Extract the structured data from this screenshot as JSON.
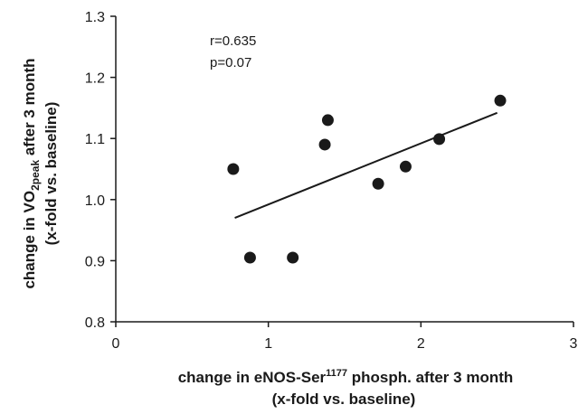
{
  "chart_data": {
    "type": "scatter",
    "title": "",
    "xlabel_line1_prefix": "change in eNOS-Ser",
    "xlabel_line1_sup": "1177",
    "xlabel_line1_suffix": " phosph. after 3 month",
    "xlabel_line2": "(x-fold vs. baseline)",
    "ylabel_line1_prefix": "change in VO",
    "ylabel_line1_sub": "2peak",
    "ylabel_line1_suffix": " after 3 month",
    "ylabel_line2": "(x-fold vs. baseline)",
    "xlim": [
      0,
      3
    ],
    "ylim": [
      0.8,
      1.3
    ],
    "x_ticks": [
      0,
      1,
      2,
      3
    ],
    "x_tick_labels": [
      "0",
      "1",
      "2",
      "3"
    ],
    "y_ticks": [
      0.8,
      0.9,
      1.0,
      1.1,
      1.2,
      1.3
    ],
    "y_tick_labels": [
      "0.8",
      "0.9",
      "1.0",
      "1.1",
      "1.2",
      "1.3"
    ],
    "grid": false,
    "legend": "none",
    "points": [
      {
        "x": 0.77,
        "y": 1.05
      },
      {
        "x": 0.88,
        "y": 0.905
      },
      {
        "x": 1.16,
        "y": 0.905
      },
      {
        "x": 1.37,
        "y": 1.09
      },
      {
        "x": 1.39,
        "y": 1.13
      },
      {
        "x": 1.72,
        "y": 1.026
      },
      {
        "x": 1.9,
        "y": 1.054
      },
      {
        "x": 2.12,
        "y": 1.099
      },
      {
        "x": 2.52,
        "y": 1.162
      }
    ],
    "trendline": {
      "x": [
        0.78,
        2.5
      ],
      "y": [
        0.97,
        1.142
      ]
    },
    "annotations": [
      "r=0.635",
      "p=0.07"
    ],
    "colors": {
      "marker": "#1a1a1a",
      "axis": "#1a1a1a",
      "background": "#ffffff"
    }
  }
}
